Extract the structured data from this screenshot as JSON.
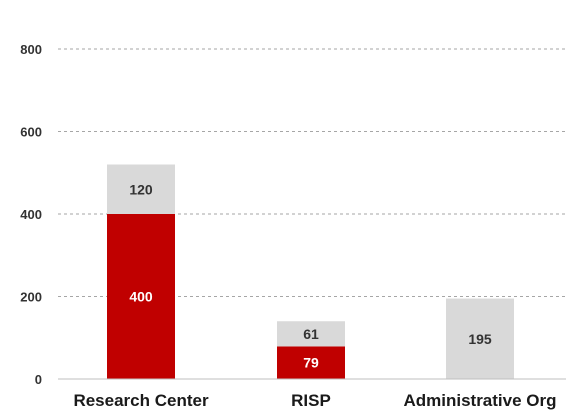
{
  "chart_data": {
    "type": "bar",
    "stacked": true,
    "categories": [
      "Research Center",
      "RISP",
      "Administrative Org"
    ],
    "series": [
      {
        "values": [
          400,
          79,
          0
        ],
        "color": "#c00000",
        "label_color": "#ffffff"
      },
      {
        "values": [
          120,
          61,
          195
        ],
        "color": "#d9d9d9",
        "label_color": "#333333"
      }
    ],
    "ylim": [
      0,
      800
    ],
    "yticks": [
      0,
      200,
      400,
      600,
      800
    ],
    "ytick_labels": [
      "0",
      "200",
      "400",
      "600",
      "800"
    ],
    "grid": true,
    "legend": "none",
    "title": "",
    "xlabel": "",
    "ylabel": ""
  }
}
